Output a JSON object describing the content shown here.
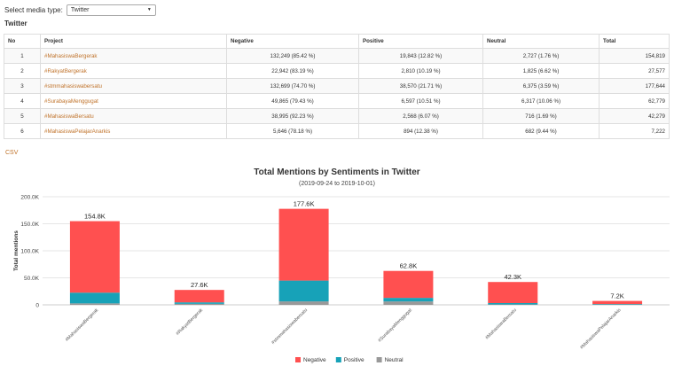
{
  "media": {
    "label": "Select media type:",
    "selected": "Twitter"
  },
  "section_title": "Twitter",
  "table": {
    "headers": [
      "No",
      "Project",
      "Negative",
      "Positive",
      "Neutral",
      "Total"
    ],
    "rows": [
      [
        "1",
        "#MahasiswaBergerak",
        "132,249 (85.42 %)",
        "19,843 (12.82 %)",
        "2,727 (1.76 %)",
        "154,819"
      ],
      [
        "2",
        "#RakyatBergerak",
        "22,942 (83.19 %)",
        "2,810 (10.19 %)",
        "1,825 (6.62 %)",
        "27,577"
      ],
      [
        "3",
        "#stmmahasiswabersatu",
        "132,699 (74.70 %)",
        "38,570 (21.71 %)",
        "6,375 (3.59 %)",
        "177,644"
      ],
      [
        "4",
        "#SurabayaMenggugat",
        "49,865 (79.43 %)",
        "6,597 (10.51 %)",
        "6,317 (10.06 %)",
        "62,779"
      ],
      [
        "5",
        "#MahasiswaBersatu",
        "38,995 (92.23 %)",
        "2,568 (6.07 %)",
        "716 (1.69 %)",
        "42,279"
      ],
      [
        "6",
        "#MahasiswaPelajarAnarkis",
        "5,646 (78.18 %)",
        "894 (12.38 %)",
        "682 (9.44 %)",
        "7,222"
      ]
    ]
  },
  "csv_label": "CSV",
  "chart_data": {
    "type": "bar",
    "stacked": true,
    "title": "Total Mentions by Sentiments in Twitter",
    "subtitle": "(2019-09-24 to 2019-10-01)",
    "ylabel": "Total mentions",
    "ylim": [
      0,
      200000
    ],
    "yticks": [
      0,
      50000,
      100000,
      150000,
      200000
    ],
    "ytick_labels": [
      "0",
      "50.0K",
      "100.0K",
      "150.0K",
      "200.0K"
    ],
    "categories": [
      "#MahasiswaBergerak",
      "#RakyatBergerak",
      "#stmmahasiswabersatu",
      "#SurabayaMenggugat",
      "#MahasiswaBersatu",
      "#MahasiswaPelajarAnarkis"
    ],
    "series": [
      {
        "name": "Neutral",
        "color": "#999999",
        "values": [
          2727,
          1825,
          6375,
          6317,
          716,
          682
        ]
      },
      {
        "name": "Positive",
        "color": "#17a2b8",
        "values": [
          19843,
          2810,
          38570,
          6597,
          2568,
          894
        ]
      },
      {
        "name": "Negative",
        "color": "#ff5050",
        "values": [
          132249,
          22942,
          132699,
          49865,
          38995,
          5646
        ]
      }
    ],
    "legend_order": [
      "Negative",
      "Positive",
      "Neutral"
    ],
    "total_labels": [
      "154.8K",
      "27.6K",
      "177.6K",
      "62.8K",
      "42.3K",
      "7.2K"
    ],
    "legend_position": "bottom",
    "grid": true
  }
}
